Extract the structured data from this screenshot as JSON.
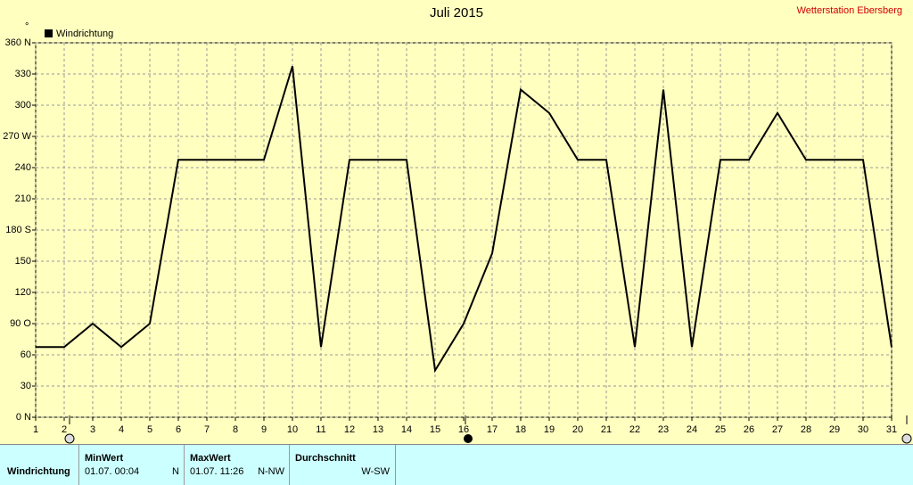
{
  "chart_data": {
    "type": "line",
    "title": "Juli 2015",
    "subtitle": "Wetterstation Ebersberg",
    "y_label": "°",
    "x": [
      1,
      2,
      3,
      4,
      5,
      6,
      7,
      8,
      9,
      10,
      11,
      12,
      13,
      14,
      15,
      16,
      17,
      18,
      19,
      20,
      21,
      22,
      23,
      24,
      25,
      26,
      27,
      28,
      29,
      30,
      31
    ],
    "series": [
      {
        "name": "Windrichtung",
        "color": "#000000",
        "values": [
          67.5,
          67.5,
          90,
          67.5,
          90,
          247.5,
          247.5,
          247.5,
          247.5,
          337.5,
          67.5,
          247.5,
          247.5,
          247.5,
          45,
          90,
          157.5,
          315,
          292.5,
          247.5,
          247.5,
          67.5,
          315,
          67.5,
          247.5,
          247.5,
          292.5,
          247.5,
          247.5,
          247.5,
          67.5
        ]
      }
    ],
    "xlim": [
      1,
      31
    ],
    "xticks": [
      1,
      2,
      3,
      4,
      5,
      6,
      7,
      8,
      9,
      10,
      11,
      12,
      13,
      14,
      15,
      16,
      17,
      18,
      19,
      20,
      21,
      22,
      23,
      24,
      25,
      26,
      27,
      28,
      29,
      30,
      31
    ],
    "ylim": [
      0,
      360
    ],
    "yticks": [
      {
        "value": 0,
        "label": "0 N"
      },
      30,
      60,
      {
        "value": 90,
        "label": "90 O"
      },
      120,
      150,
      {
        "value": 180,
        "label": "180 S"
      },
      210,
      240,
      {
        "value": 270,
        "label": "270 W"
      },
      300,
      330,
      {
        "value": 360,
        "label": "360 N"
      }
    ],
    "grid": true,
    "legend": "top-left"
  },
  "stats_table": {
    "row_label": "Windrichtung",
    "columns": [
      {
        "header": "MinWert",
        "time": "01.07.  00:04",
        "value": "N"
      },
      {
        "header": "MaxWert",
        "time": "01.07.  11:26",
        "value": "N-NW"
      },
      {
        "header": "Durchschnitt",
        "time": "",
        "value": "W-SW"
      }
    ]
  }
}
